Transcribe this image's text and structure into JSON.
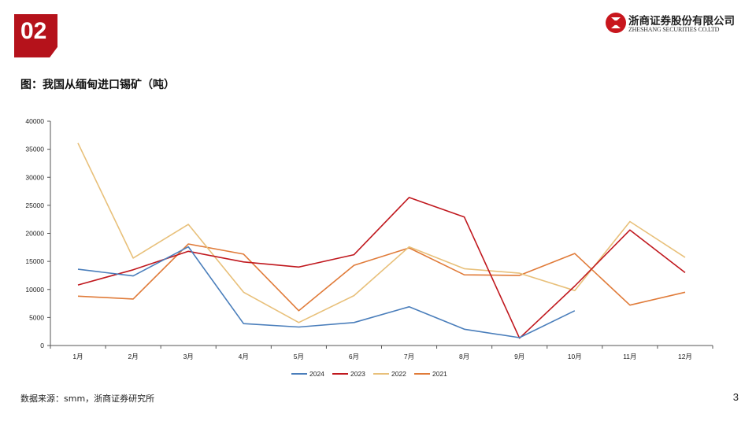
{
  "page": {
    "section_number": "02",
    "company_cn": "浙商证券股份有限公司",
    "company_en": "ZHESHANG SECURITIES CO.LTD",
    "title": "图：我国从缅甸进口锡矿（吨）",
    "source": "数据来源：smm，浙商证券研究所",
    "page_number": "3"
  },
  "colors": {
    "brand_red": "#b5121b"
  },
  "chart_data": {
    "type": "line",
    "title": "",
    "categories": [
      "1月",
      "2月",
      "3月",
      "4月",
      "5月",
      "6月",
      "7月",
      "8月",
      "9月",
      "10月",
      "11月",
      "12月"
    ],
    "ylim": [
      0,
      40000
    ],
    "yticks": [
      0,
      5000,
      10000,
      15000,
      20000,
      25000,
      30000,
      35000,
      40000
    ],
    "grid": false,
    "legend_position": "bottom",
    "series": [
      {
        "name": "2024",
        "color": "#4a7ebb",
        "values": [
          13600,
          12400,
          17600,
          3900,
          3300,
          4100,
          6900,
          2900,
          1400,
          6200,
          null,
          null
        ]
      },
      {
        "name": "2023",
        "color": "#c0181e",
        "values": [
          10800,
          13500,
          16800,
          14900,
          14000,
          16200,
          26400,
          22900,
          1300,
          10600,
          20600,
          13000
        ]
      },
      {
        "name": "2022",
        "color": "#e8c07a",
        "values": [
          36100,
          15600,
          21600,
          9500,
          4100,
          8900,
          17600,
          13700,
          12900,
          9800,
          22100,
          15700
        ]
      },
      {
        "name": "2021",
        "color": "#e07b39",
        "values": [
          8800,
          8300,
          18100,
          16300,
          6200,
          14300,
          17400,
          12600,
          12500,
          16400,
          7200,
          9500
        ]
      }
    ]
  }
}
